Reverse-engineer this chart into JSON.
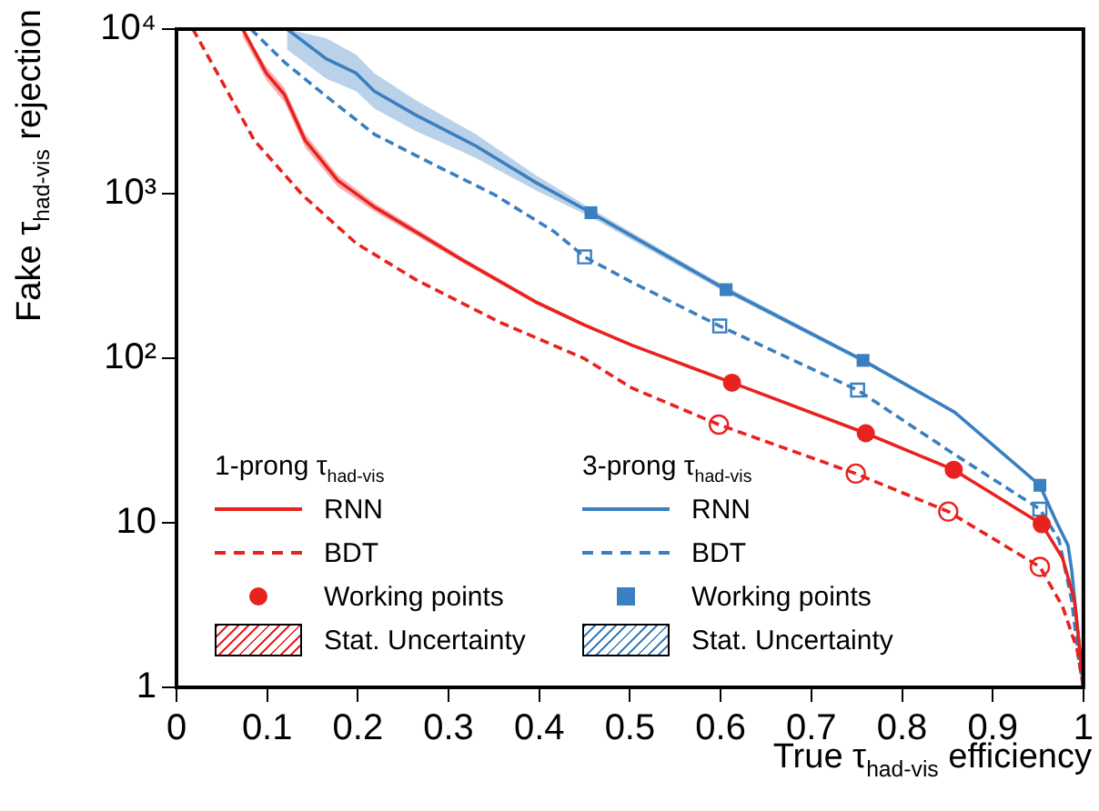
{
  "chart_data": {
    "type": "line",
    "xlabel": "True τ$_{had-vis}$ efficiency",
    "ylabel": "Fake τ$_{had-vis}$ rejection",
    "xlim": [
      0,
      1
    ],
    "xticks": [
      0,
      0.1,
      0.2,
      0.3,
      0.4,
      0.5,
      0.6,
      0.7,
      0.8,
      0.9,
      1
    ],
    "ylim": [
      1,
      10000
    ],
    "yticks": [
      1,
      10,
      {
        "value": 100,
        "label": "10²"
      },
      {
        "value": 1000,
        "label": "10³"
      },
      {
        "value": 10000,
        "label": "10⁴"
      }
    ],
    "log": "y",
    "grid": false,
    "legend": "bottom left",
    "annotations": [
      "1-prong τ$_{had-vis}$",
      "3-prong τ$_{had-vis}$",
      "Stat. Uncertainty",
      "Stat. Uncertainty"
    ],
    "series": [
      {
        "name": "RNN",
        "line_style": "solid",
        "color": "#e8221f",
        "x": [
          0.073,
          0.099,
          0.119,
          0.142,
          0.178,
          0.218,
          0.263,
          0.317,
          0.396,
          0.449,
          0.502,
          0.6125,
          0.76,
          0.857,
          0.954,
          0.977,
          0.99,
          0.999
        ],
        "values": [
          10000,
          5400,
          4000,
          2100,
          1200,
          830,
          590,
          390,
          220,
          160,
          120,
          71,
          35,
          21,
          9.8,
          6.1,
          3.4,
          1.2
        ],
        "lower": [
          9000,
          4900,
          3600,
          1900,
          1100,
          780,
          560,
          375,
          213,
          156,
          118,
          70,
          34.5,
          20.7,
          9.7,
          6,
          3.35,
          1.2
        ],
        "upper": [
          10000,
          5900,
          4400,
          2300,
          1300,
          880,
          620,
          405,
          227,
          164,
          122,
          72,
          35.5,
          21.3,
          9.9,
          6.2,
          3.45,
          1.2
        ]
      },
      {
        "name": "BDT",
        "line_style": "dashed",
        "color": "#e8221f",
        "x": [
          0.018,
          0.053,
          0.086,
          0.139,
          0.198,
          0.264,
          0.356,
          0.449,
          0.502,
          0.598,
          0.749,
          0.851,
          0.952,
          0.977,
          0.993,
          1
        ],
        "values": [
          10000,
          4500,
          2100,
          980,
          500,
          300,
          166,
          100,
          66,
          39.5,
          19.9,
          11.7,
          5.4,
          3.1,
          1.7,
          1
        ]
      },
      {
        "name": "Working points",
        "type": "scatter",
        "marker": "circle",
        "color": "#e8221f",
        "x": [
          0.6125,
          0.76,
          0.857,
          0.954
        ],
        "values": [
          71,
          35,
          21,
          9.8
        ]
      },
      {
        "type": "scatter",
        "marker": "circle",
        "color": "#e8221f",
        "x": [
          0.598,
          0.749,
          0.851,
          0.952
        ],
        "values": [
          39.5,
          19.9,
          11.7,
          5.4
        ]
      },
      {
        "name": "RNN",
        "line_style": "solid",
        "color": "#3a7fc0",
        "x": [
          0.122,
          0.165,
          0.198,
          0.218,
          0.264,
          0.33,
          0.396,
          0.457,
          0.606,
          0.757,
          0.858,
          0.952,
          0.97,
          0.983,
          0.987,
          0.997,
          1
        ],
        "values": [
          10000,
          6600,
          5400,
          4200,
          3000,
          1950,
          1170,
          766,
          261,
          97,
          47,
          16.9,
          10.2,
          7.3,
          5.2,
          1.45,
          1
        ],
        "lower": [
          7500,
          5000,
          4200,
          3300,
          2400,
          1650,
          1050,
          720,
          250,
          94,
          46,
          16.5,
          10,
          7.1,
          5.1,
          1.4,
          1
        ],
        "upper": [
          10000,
          8800,
          7000,
          5400,
          3700,
          2300,
          1300,
          810,
          272,
          100,
          48,
          17.3,
          10.4,
          7.5,
          5.3,
          1.5,
          1
        ]
      },
      {
        "name": "BDT",
        "line_style": "dashed",
        "color": "#3a7fc0",
        "x": [
          0.082,
          0.119,
          0.158,
          0.218,
          0.284,
          0.35,
          0.416,
          0.45,
          0.502,
          0.599,
          0.751,
          0.858,
          0.952,
          0.973,
          0.987,
          0.995,
          1
        ],
        "values": [
          10000,
          6300,
          4200,
          2300,
          1500,
          990,
          590,
          413,
          290,
          157,
          64,
          26,
          12.1,
          7.9,
          3.4,
          1.45,
          1
        ]
      },
      {
        "name": "Working points",
        "type": "scatter",
        "marker": "square",
        "color": "#3a7fc0",
        "x": [
          0.457,
          0.606,
          0.757,
          0.952
        ],
        "values": [
          766,
          261,
          97,
          16.9
        ]
      },
      {
        "type": "scatter",
        "marker": "square",
        "color": "#3a7fc0",
        "x": [
          0.45,
          0.599,
          0.751,
          0.952
        ],
        "values": [
          413,
          157,
          64,
          12.1
        ]
      }
    ]
  }
}
